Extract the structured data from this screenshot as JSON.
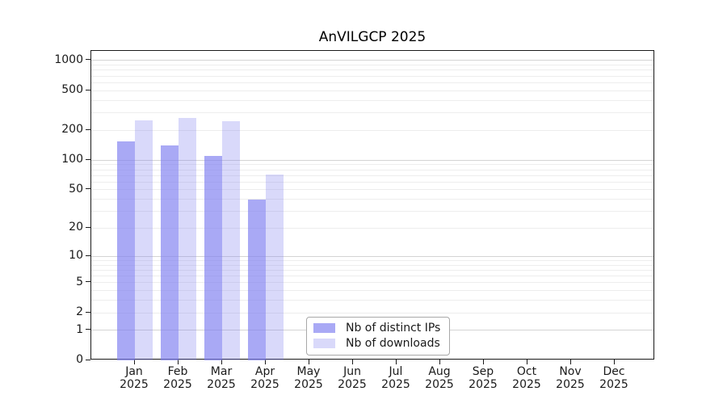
{
  "title": "AnVILGCP 2025",
  "chart_data": {
    "type": "bar",
    "title": "AnVILGCP 2025",
    "categories": [
      "Jan",
      "Feb",
      "Mar",
      "Apr",
      "May",
      "Jun",
      "Jul",
      "Aug",
      "Sep",
      "Oct",
      "Nov",
      "Dec"
    ],
    "year": "2025",
    "series": [
      {
        "name": "Nb of distinct IPs",
        "color": "rgba(128,128,240,0.68)",
        "values": [
          155,
          140,
          110,
          40,
          null,
          null,
          null,
          null,
          null,
          null,
          null,
          null
        ]
      },
      {
        "name": "Nb of downloads",
        "color": "rgba(128,128,240,0.30)",
        "values": [
          252,
          268,
          246,
          72,
          null,
          null,
          null,
          null,
          null,
          null,
          null,
          null
        ]
      }
    ],
    "y_scale": "log1p",
    "ylim": [
      0,
      1250
    ],
    "y_ticks": [
      0,
      1,
      2,
      5,
      10,
      20,
      50,
      100,
      200,
      500,
      1000
    ],
    "minor_grid_values": [
      2,
      3,
      4,
      5,
      6,
      7,
      8,
      9,
      20,
      30,
      40,
      50,
      60,
      70,
      80,
      90,
      200,
      300,
      400,
      500,
      600,
      700,
      800,
      900
    ],
    "major_grid_values": [
      1,
      10,
      100,
      1000
    ],
    "grid": true,
    "legend_position": "inside-bottom-center",
    "xlabel": "",
    "ylabel": ""
  },
  "colors": {
    "bar_base": "#8080f0",
    "spine": "#1a1a1a",
    "grid_minor": "#ededed",
    "grid_major": "#d4d4d4",
    "legend_border": "#a8a8a8"
  }
}
